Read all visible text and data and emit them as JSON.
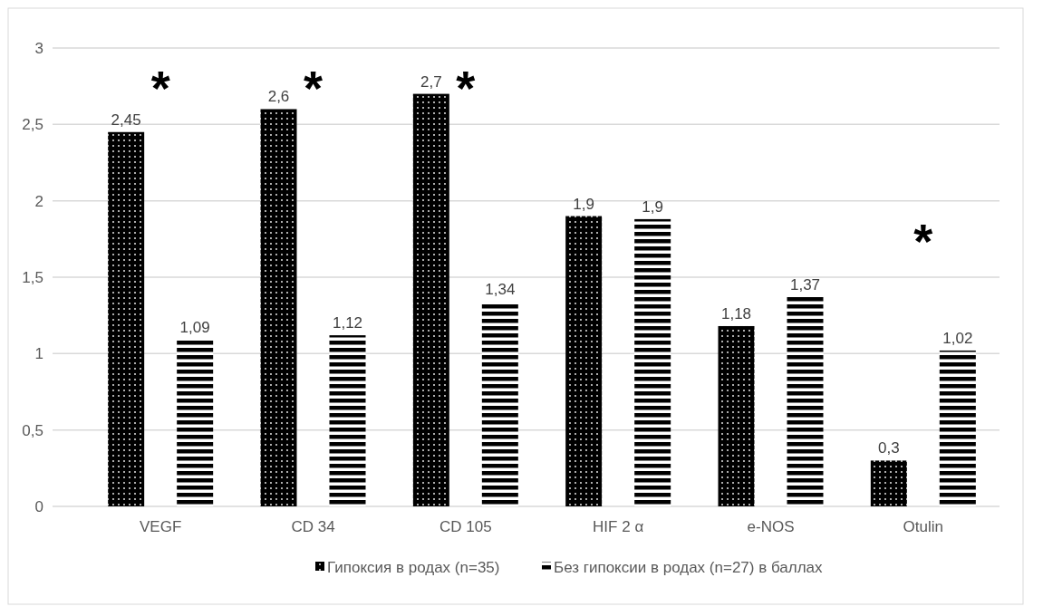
{
  "chart_data": {
    "type": "bar",
    "categories": [
      "VEGF",
      "CD 34",
      "CD 105",
      "HIF 2 α",
      "e-NOS",
      "Otulin"
    ],
    "series": [
      {
        "name": "Гипоксия в родах (n=35)",
        "color": "#000000",
        "values": [
          2.45,
          2.6,
          2.7,
          1.9,
          1.18,
          0.3
        ],
        "value_labels": [
          "2,45",
          "2,6",
          "2,7",
          "1,9",
          "1,18",
          "0,3"
        ]
      },
      {
        "name": "Без гипоксии в родах (n=27) в баллах",
        "color": "#000000",
        "values": [
          1.09,
          1.12,
          1.34,
          1.88,
          1.37,
          1.02
        ],
        "value_labels": [
          "1,09",
          "1,12",
          "1,34",
          "1,9",
          "1,37",
          "1,02"
        ]
      }
    ],
    "ylim": [
      0,
      3
    ],
    "yticks": [
      0,
      {
        "value": 0.5,
        "label": "0,5"
      },
      1,
      {
        "value": 1.5,
        "label": "1,5"
      },
      2,
      {
        "value": 2.5,
        "label": "2,5"
      },
      3
    ],
    "grid": "y",
    "legend": "bottom",
    "annotations": [
      "*",
      "*",
      "*",
      "*"
    ]
  }
}
